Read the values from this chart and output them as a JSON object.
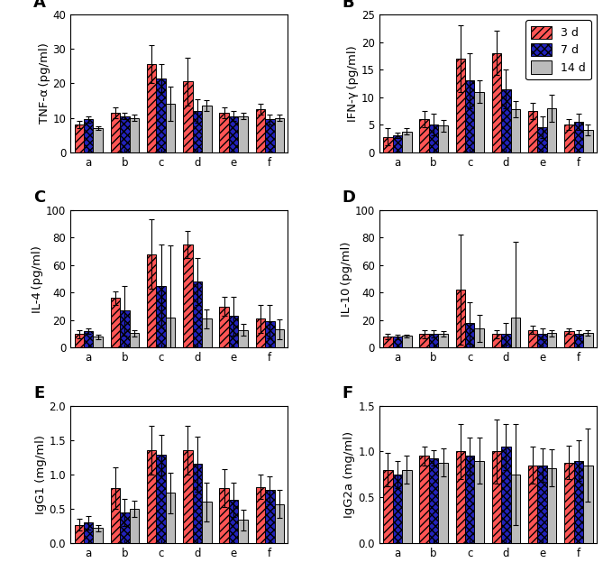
{
  "panels": [
    {
      "label": "A",
      "ylabel": "TNF-α (pg/ml)",
      "ylim": [
        0,
        40
      ],
      "yticks": [
        0,
        10,
        20,
        30,
        40
      ],
      "values_3d": [
        8.0,
        11.5,
        25.5,
        20.5,
        11.5,
        12.5
      ],
      "values_7d": [
        9.5,
        10.5,
        21.5,
        12.0,
        10.5,
        9.5
      ],
      "values_14d": [
        7.0,
        10.0,
        14.0,
        13.5,
        10.5,
        10.0
      ],
      "err_3d": [
        1.0,
        1.5,
        5.5,
        7.0,
        1.5,
        1.5
      ],
      "err_7d": [
        1.0,
        1.0,
        4.0,
        3.5,
        1.5,
        1.5
      ],
      "err_14d": [
        0.5,
        1.0,
        5.0,
        1.5,
        1.0,
        1.0
      ]
    },
    {
      "label": "B",
      "ylabel": "IFN-γ (pg/ml)",
      "ylim": [
        0,
        25
      ],
      "yticks": [
        0,
        5,
        10,
        15,
        20,
        25
      ],
      "values_3d": [
        2.8,
        6.0,
        17.0,
        18.0,
        7.5,
        5.0
      ],
      "values_7d": [
        3.1,
        5.0,
        13.0,
        11.5,
        4.5,
        5.5
      ],
      "values_14d": [
        3.8,
        4.8,
        11.0,
        7.8,
        8.0,
        4.0
      ],
      "err_3d": [
        1.5,
        1.5,
        6.0,
        4.0,
        1.5,
        1.0
      ],
      "err_7d": [
        0.5,
        2.0,
        5.0,
        3.5,
        2.0,
        1.5
      ],
      "err_14d": [
        0.5,
        1.0,
        2.0,
        1.5,
        2.5,
        1.0
      ]
    },
    {
      "label": "C",
      "ylabel": "IL-4 (pg/ml)",
      "ylim": [
        0,
        100
      ],
      "yticks": [
        0,
        20,
        40,
        60,
        80,
        100
      ],
      "values_3d": [
        10.0,
        36.0,
        68.0,
        75.0,
        30.0,
        21.0
      ],
      "values_7d": [
        12.0,
        27.0,
        45.0,
        48.0,
        23.0,
        19.0
      ],
      "values_14d": [
        8.0,
        10.5,
        22.0,
        21.0,
        13.0,
        13.5
      ],
      "err_3d": [
        3.0,
        5.0,
        25.0,
        10.0,
        7.0,
        10.0
      ],
      "err_7d": [
        2.0,
        18.0,
        30.0,
        17.0,
        14.0,
        12.0
      ],
      "err_14d": [
        1.5,
        2.5,
        52.0,
        7.0,
        4.0,
        7.0
      ]
    },
    {
      "label": "D",
      "ylabel": "IL-10 (pg/ml)",
      "ylim": [
        0,
        100
      ],
      "yticks": [
        0,
        20,
        40,
        60,
        80,
        100
      ],
      "values_3d": [
        8.0,
        10.0,
        42.0,
        10.0,
        13.0,
        12.0
      ],
      "values_7d": [
        8.0,
        10.0,
        18.0,
        10.0,
        10.0,
        10.0
      ],
      "values_14d": [
        8.5,
        10.0,
        14.0,
        22.0,
        10.5,
        10.5
      ],
      "err_3d": [
        2.0,
        3.0,
        40.0,
        3.0,
        3.0,
        2.0
      ],
      "err_7d": [
        1.5,
        2.5,
        15.0,
        8.0,
        4.0,
        3.0
      ],
      "err_14d": [
        1.0,
        2.0,
        10.0,
        55.0,
        2.5,
        2.0
      ]
    },
    {
      "label": "E",
      "ylabel": "IgG1 (mg/ml)",
      "ylim": [
        0.0,
        2.0
      ],
      "yticks": [
        0.0,
        0.5,
        1.0,
        1.5,
        2.0
      ],
      "values_3d": [
        0.27,
        0.8,
        1.35,
        1.35,
        0.8,
        0.82
      ],
      "values_7d": [
        0.3,
        0.45,
        1.28,
        1.15,
        0.63,
        0.77
      ],
      "values_14d": [
        0.22,
        0.5,
        0.73,
        0.6,
        0.34,
        0.57
      ],
      "err_3d": [
        0.08,
        0.3,
        0.35,
        0.35,
        0.28,
        0.18
      ],
      "err_7d": [
        0.1,
        0.2,
        0.3,
        0.4,
        0.25,
        0.2
      ],
      "err_14d": [
        0.05,
        0.12,
        0.3,
        0.28,
        0.15,
        0.2
      ]
    },
    {
      "label": "F",
      "ylabel": "IgG2a (mg/ml)",
      "ylim": [
        0.0,
        1.5
      ],
      "yticks": [
        0.0,
        0.5,
        1.0,
        1.5
      ],
      "values_3d": [
        0.8,
        0.95,
        1.0,
        1.0,
        0.85,
        0.88
      ],
      "values_7d": [
        0.75,
        0.93,
        0.95,
        1.05,
        0.85,
        0.9
      ],
      "values_14d": [
        0.8,
        0.88,
        0.9,
        0.75,
        0.82,
        0.85
      ],
      "err_3d": [
        0.18,
        0.1,
        0.3,
        0.35,
        0.2,
        0.18
      ],
      "err_7d": [
        0.15,
        0.08,
        0.2,
        0.25,
        0.18,
        0.22
      ],
      "err_14d": [
        0.15,
        0.15,
        0.25,
        0.55,
        0.2,
        0.4
      ]
    }
  ],
  "categories": [
    "a",
    "b",
    "c",
    "d",
    "e",
    "f"
  ],
  "color_3d": "#FF5555",
  "color_7d": "#2222BB",
  "color_14d": "#BBBBBB",
  "hatch_3d": "////",
  "hatch_7d": "xxxx",
  "hatch_14d": "",
  "legend_labels": [
    "3 d",
    "7 d",
    "14 d"
  ]
}
